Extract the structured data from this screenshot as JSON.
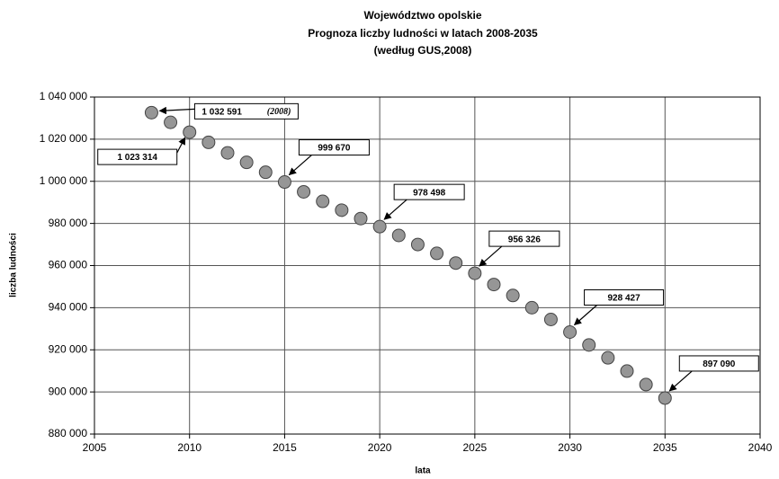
{
  "chart_data": {
    "type": "scatter",
    "title": [
      "Województwo opolskie",
      "Prognoza liczby ludności w latach 2008-2035",
      "(według GUS,2008)"
    ],
    "xlabel": "lata",
    "ylabel": "liczba ludności",
    "x": [
      2008,
      2009,
      2010,
      2011,
      2012,
      2013,
      2014,
      2015,
      2016,
      2017,
      2018,
      2019,
      2020,
      2021,
      2022,
      2023,
      2024,
      2025,
      2026,
      2027,
      2028,
      2029,
      2030,
      2031,
      2032,
      2033,
      2034,
      2035
    ],
    "series": [
      {
        "name": "ludność",
        "color": "#969696",
        "values": [
          1032591,
          1028000,
          1023314,
          1018500,
          1013500,
          1009000,
          1004300,
          999670,
          995000,
          990500,
          986300,
          982300,
          978498,
          974300,
          970000,
          965800,
          961200,
          956326,
          951000,
          945800,
          940000,
          934400,
          928427,
          922300,
          916200,
          909900,
          903500,
          897090
        ],
        "value_labels": [
          "1 032 591",
          null,
          "1 023 314",
          null,
          null,
          null,
          null,
          "999 670",
          null,
          null,
          null,
          null,
          "978 498",
          null,
          null,
          null,
          null,
          "956 326",
          null,
          null,
          null,
          null,
          "928 427",
          null,
          null,
          null,
          null,
          "897 090"
        ]
      }
    ],
    "annotations": [
      {
        "text": "(2008)",
        "x": 2008
      }
    ],
    "xlim": [
      2005,
      2040
    ],
    "xticks": [
      2005,
      2010,
      2015,
      2020,
      2025,
      2030,
      2035,
      2040
    ],
    "ylim": [
      880000,
      1040000
    ],
    "yticks": [
      {
        "value": 880000,
        "label": "880 000"
      },
      {
        "value": 900000,
        "label": "900 000"
      },
      {
        "value": 920000,
        "label": "920 000"
      },
      {
        "value": 940000,
        "label": "940 000"
      },
      {
        "value": 960000,
        "label": "960 000"
      },
      {
        "value": 980000,
        "label": "980 000"
      },
      {
        "value": 1000000,
        "label": "1 000 000"
      },
      {
        "value": 1020000,
        "label": "1 020 000"
      },
      {
        "value": 1040000,
        "label": "1 040 000"
      }
    ],
    "grid": true
  }
}
